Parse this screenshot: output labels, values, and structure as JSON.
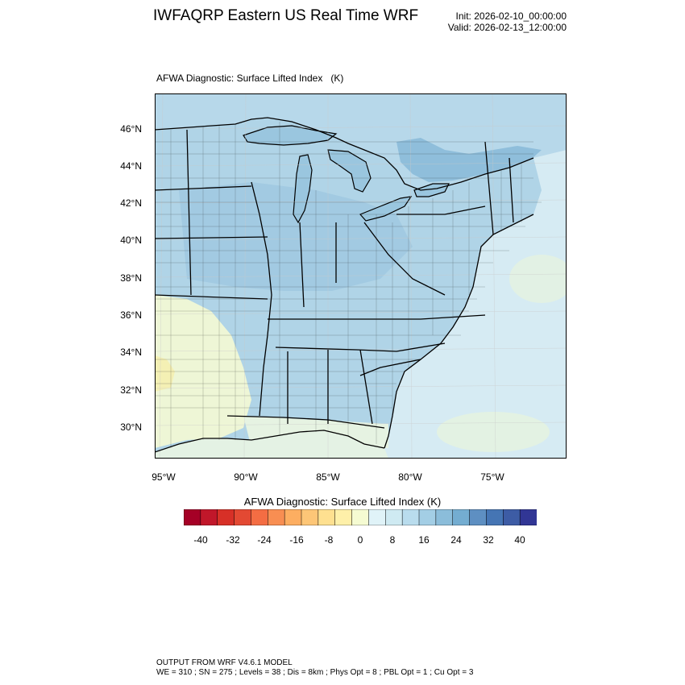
{
  "header": {
    "title": "IWFAQRP Eastern US Real Time WRF",
    "init": "Init: 2026-02-10_00:00:00",
    "valid": "Valid: 2026-02-13_12:00:00"
  },
  "map": {
    "field_title": "AFWA Diagnostic: Surface Lifted Index   (K)",
    "lat_labels": [
      "46°N",
      "44°N",
      "42°N",
      "40°N",
      "38°N",
      "36°N",
      "34°N",
      "32°N",
      "30°N"
    ],
    "lon_labels": [
      "95°W",
      "90°W",
      "85°W",
      "80°W",
      "75°W"
    ],
    "colors": {
      "water_light": "#d6ebf3",
      "land_blue": "#a9cfe3",
      "land_mid": "#b9dbea",
      "land_dark": "#7fb1d3",
      "warm_yellow": "#f5f7c8",
      "pale_green": "#e8f4e6"
    }
  },
  "colorbar": {
    "title": "AFWA Diagnostic: Surface Lifted Index  (K)",
    "tick_labels": [
      "-40",
      "-32",
      "-24",
      "-16",
      "-8",
      "0",
      "8",
      "16",
      "24",
      "32",
      "40"
    ],
    "colors": [
      "#a50026",
      "#c1172a",
      "#d73027",
      "#e34933",
      "#f46d43",
      "#f88e52",
      "#fdae61",
      "#fdc677",
      "#fee090",
      "#fef0a9",
      "#f5fbd2",
      "#e0f3f8",
      "#cfeaf2",
      "#b9dced",
      "#a3cee5",
      "#8bbdda",
      "#74add1",
      "#5e8fc2",
      "#4575b4",
      "#3d5ca5",
      "#313695"
    ]
  },
  "footer": {
    "line1": "OUTPUT FROM WRF V4.6.1 MODEL",
    "line2": "WE = 310 ; SN = 275 ; Levels = 38 ; Dis = 8km ; Phys Opt = 8 ; PBL Opt = 1 ; Cu Opt = 3"
  }
}
